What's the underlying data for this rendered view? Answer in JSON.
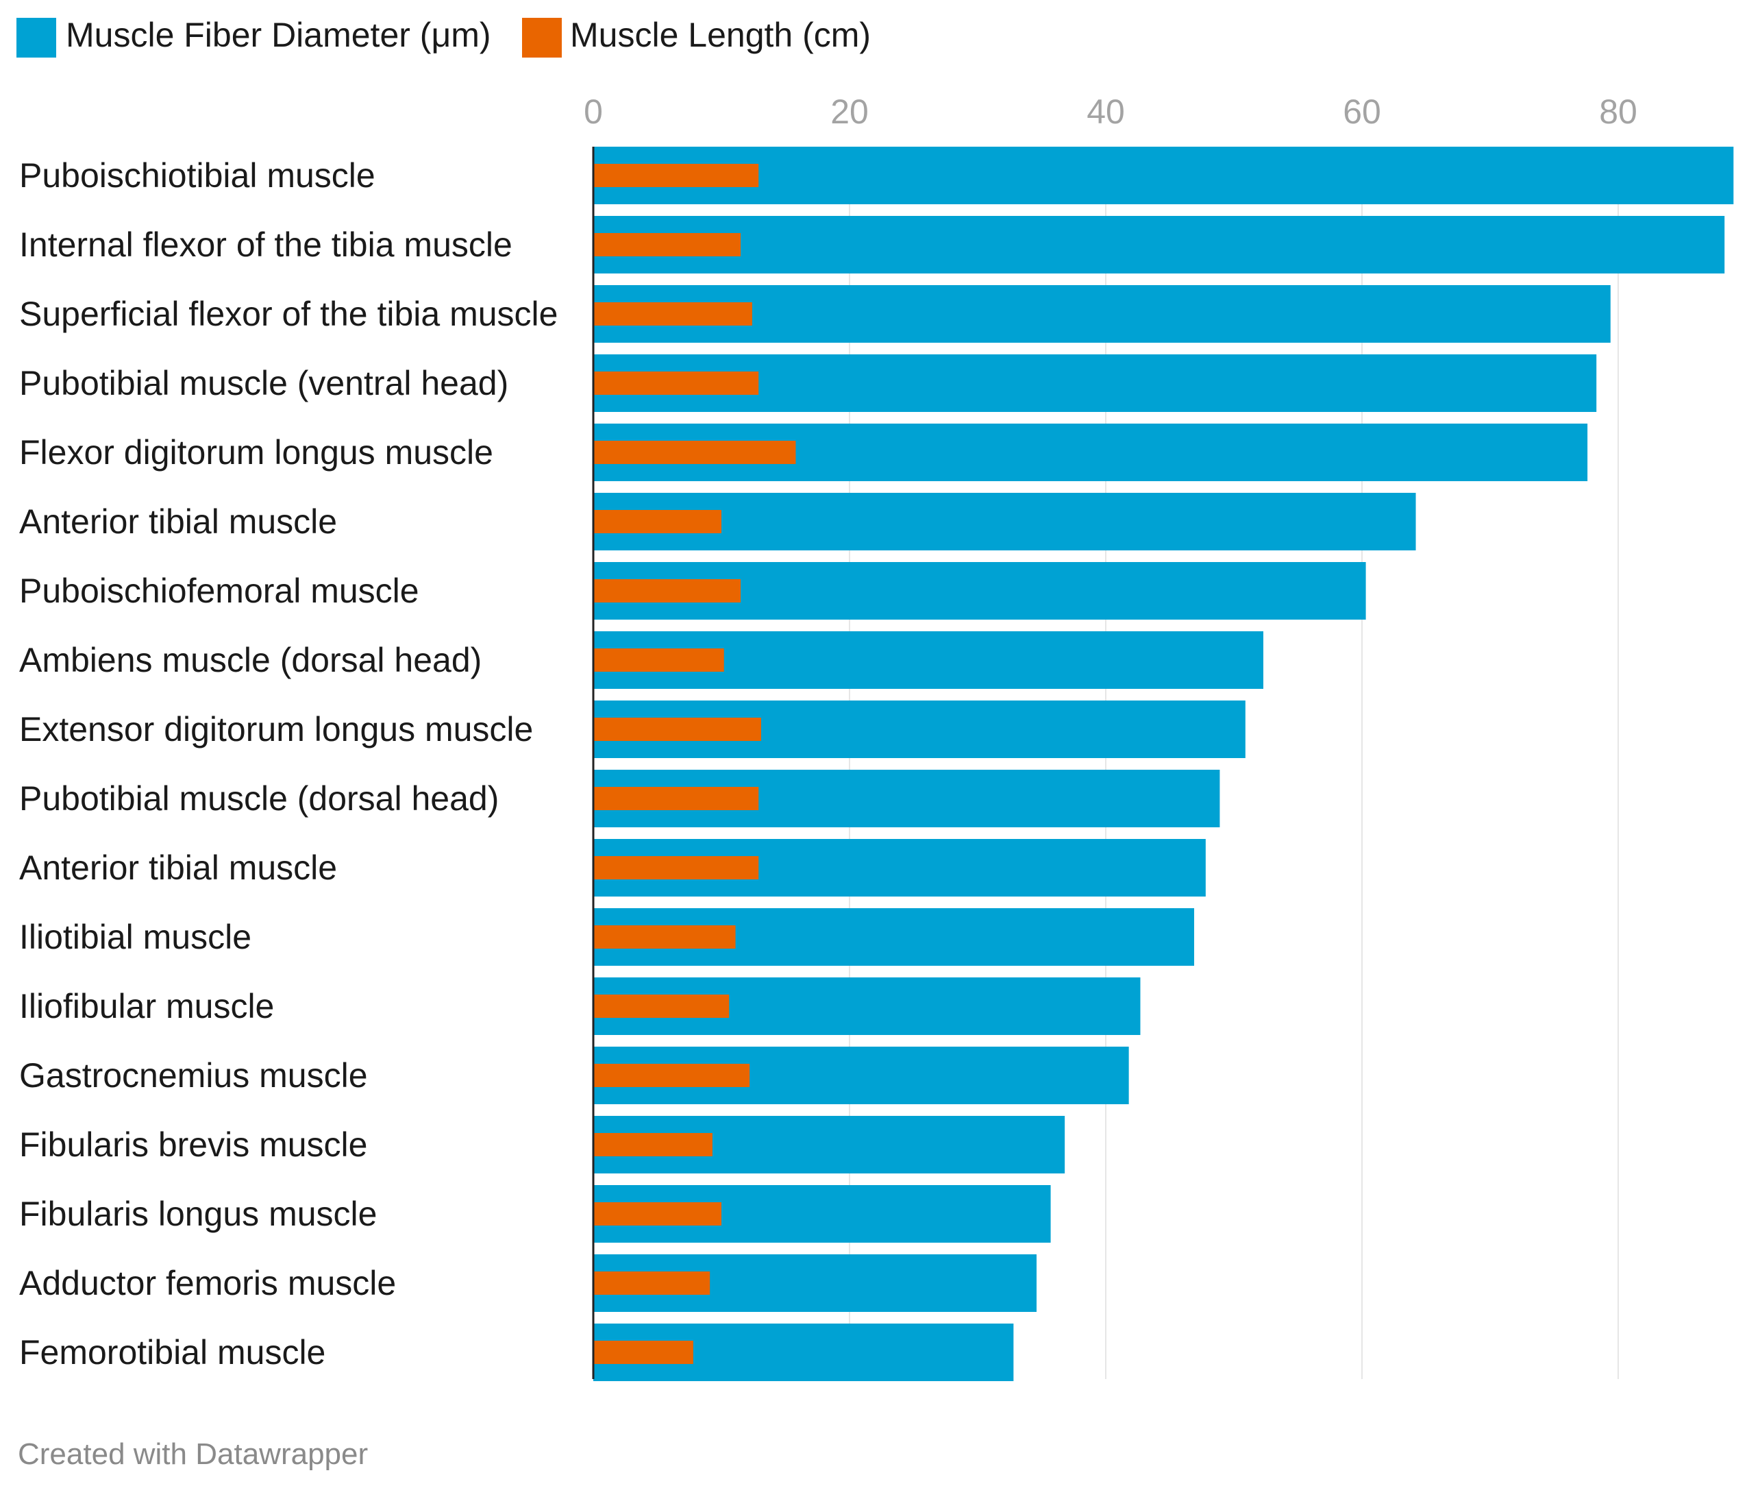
{
  "chart_data": {
    "type": "bar",
    "orientation": "horizontal",
    "title": "",
    "xlabel": "",
    "ylabel": "",
    "xlim": [
      0,
      89
    ],
    "ticks": [
      0,
      20,
      40,
      60,
      80
    ],
    "tick_labels": [
      "0",
      "20",
      "40",
      "60",
      "80"
    ],
    "grid": true,
    "legend_position": "top-left",
    "categories": [
      "Puboischiotibial muscle",
      "Internal flexor of the tibia muscle",
      "Superficial flexor of the tibia muscle",
      "Pubotibial muscle (ventral head)",
      "Flexor digitorum longus muscle",
      "Anterior tibial muscle",
      "Puboischiofemoral muscle",
      "Ambiens muscle (dorsal head)",
      "Extensor digitorum longus muscle",
      "Pubotibial muscle (dorsal head)",
      "Anterior tibial muscle",
      "Iliotibial muscle",
      "Iliofibular muscle",
      "Gastrocnemius muscle",
      "Fibularis brevis muscle",
      "Fibularis longus muscle",
      "Adductor femoris muscle",
      "Femorotibial muscle"
    ],
    "series": [
      {
        "name": "Muscle Fiber Diameter (μm)",
        "color": "#00a2d3",
        "values": [
          89.0,
          88.3,
          79.4,
          78.3,
          77.6,
          64.2,
          60.3,
          52.3,
          50.9,
          48.9,
          47.8,
          46.9,
          42.7,
          41.8,
          36.8,
          35.7,
          34.6,
          32.8
        ]
      },
      {
        "name": "Muscle Length (cm)",
        "color": "#e96500",
        "values": [
          12.9,
          11.5,
          12.4,
          12.9,
          15.8,
          10.0,
          11.5,
          10.2,
          13.1,
          12.9,
          12.9,
          11.1,
          10.6,
          12.2,
          9.3,
          10.0,
          9.1,
          7.8
        ]
      }
    ]
  },
  "footer": {
    "credit": "Created with Datawrapper"
  }
}
